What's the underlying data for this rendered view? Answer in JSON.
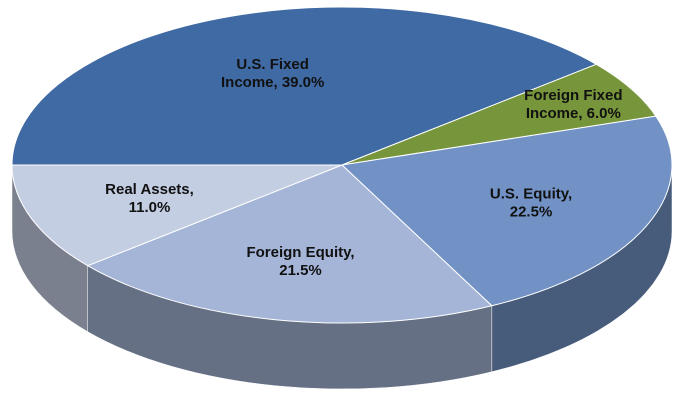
{
  "chart_data": {
    "type": "pie",
    "values": [
      39.0,
      6.0,
      22.5,
      21.5,
      11.0
    ],
    "value_labels": [
      "U.S. Fixed Income, 39.0%",
      "Foreign Fixed Income, 6.0%",
      "U.S. Equity, 22.5%",
      "Foreign Equity, 21.5%",
      "Real Assets, 11.0%"
    ],
    "colors": [
      "#3f6aa3",
      "#77963b",
      "#7292c6",
      "#a4b5d7",
      "#c4cee3"
    ]
  }
}
